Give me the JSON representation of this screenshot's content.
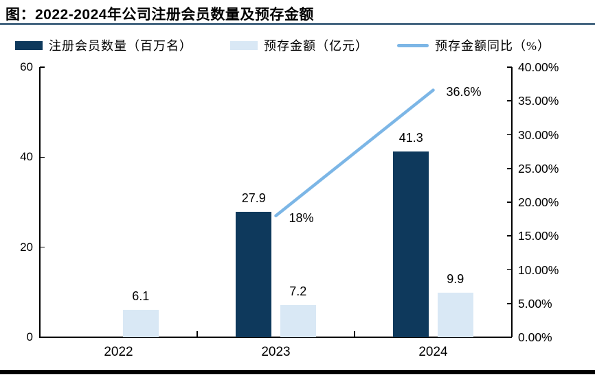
{
  "title": "图：2022-2024年公司注册会员数量及预存金额",
  "colors": {
    "dark_bar": "#0e395c",
    "light_bar": "#d9e8f5",
    "line": "#7cb6e6",
    "axis": "#000000",
    "title_rule": "#0e395c"
  },
  "legend": [
    {
      "label": "注册会员数量（百万名）",
      "type": "rect",
      "color": "#0e395c"
    },
    {
      "label": "预存金额（亿元）",
      "type": "rect",
      "color": "#d9e8f5"
    },
    {
      "label": "预存金额同比（%）",
      "type": "line",
      "color": "#7cb6e6"
    }
  ],
  "chart_data": {
    "type": "bar",
    "subtype": "combo-bar-line",
    "title": "图：2022-2024年公司注册会员数量及预存金额",
    "categories": [
      "2022",
      "2023",
      "2024"
    ],
    "series": [
      {
        "name": "注册会员数量（百万名）",
        "type": "bar",
        "axis": "left",
        "color": "#0e395c",
        "values": [
          null,
          27.9,
          41.3
        ],
        "labels": [
          "",
          "27.9",
          "41.3"
        ]
      },
      {
        "name": "预存金额（亿元）",
        "type": "bar",
        "axis": "left",
        "color": "#d9e8f5",
        "values": [
          6.1,
          7.2,
          9.9
        ],
        "labels": [
          "6.1",
          "7.2",
          "9.9"
        ]
      },
      {
        "name": "预存金额同比（%）",
        "type": "line",
        "axis": "right",
        "color": "#7cb6e6",
        "values": [
          null,
          18,
          36.6
        ],
        "labels": [
          "",
          "18%",
          "36.6%"
        ]
      }
    ],
    "left_axis": {
      "min": 0,
      "max": 60,
      "ticks": [
        "0",
        "20",
        "40",
        "60"
      ]
    },
    "right_axis": {
      "min": 0,
      "max": 40,
      "ticks": [
        "0.00%",
        "5.00%",
        "10.00%",
        "15.00%",
        "20.00%",
        "25.00%",
        "30.00%",
        "35.00%",
        "40.00%"
      ]
    },
    "grid": false,
    "legend_position": "top"
  }
}
